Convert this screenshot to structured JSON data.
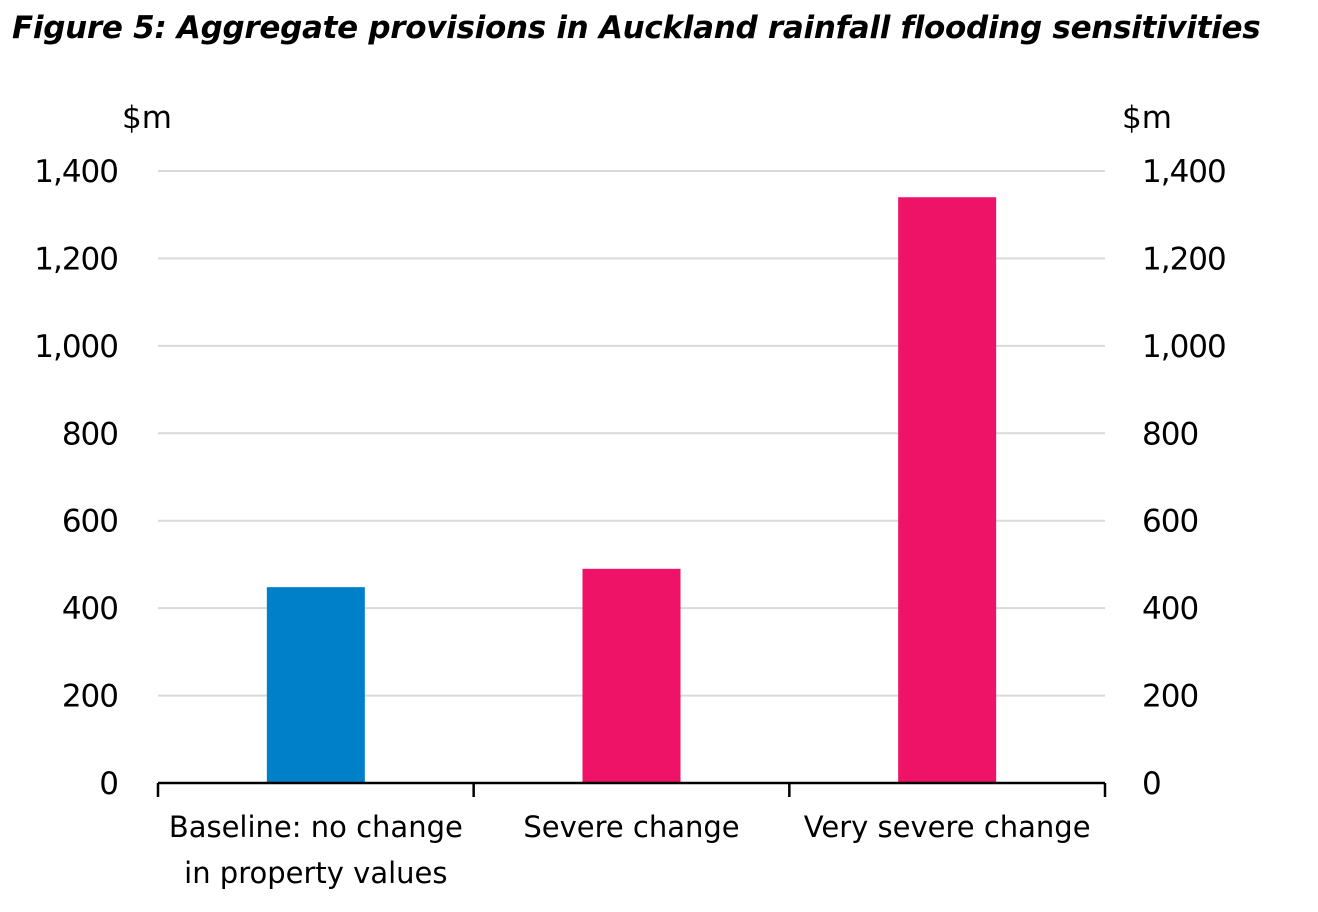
{
  "chart_data": {
    "type": "bar",
    "title": "Figure 5: Aggregate provisions in Auckland rainfall flooding sensitivities",
    "y_unit_left": "$m",
    "y_unit_right": "$m",
    "ylim": [
      0,
      1400
    ],
    "yticks": [
      0,
      200,
      400,
      600,
      800,
      1000,
      1200,
      1400
    ],
    "ytick_labels": [
      "0",
      "200",
      "400",
      "600",
      "800",
      "1,000",
      "1,200",
      "1,400"
    ],
    "grid": true,
    "categories": [
      [
        "Baseline: no change",
        "in property values"
      ],
      [
        "Severe change"
      ],
      [
        "Very severe change"
      ]
    ],
    "values": [
      448,
      490,
      1340
    ],
    "colors": [
      "#0080c8",
      "#ee1367",
      "#ee1367"
    ]
  }
}
